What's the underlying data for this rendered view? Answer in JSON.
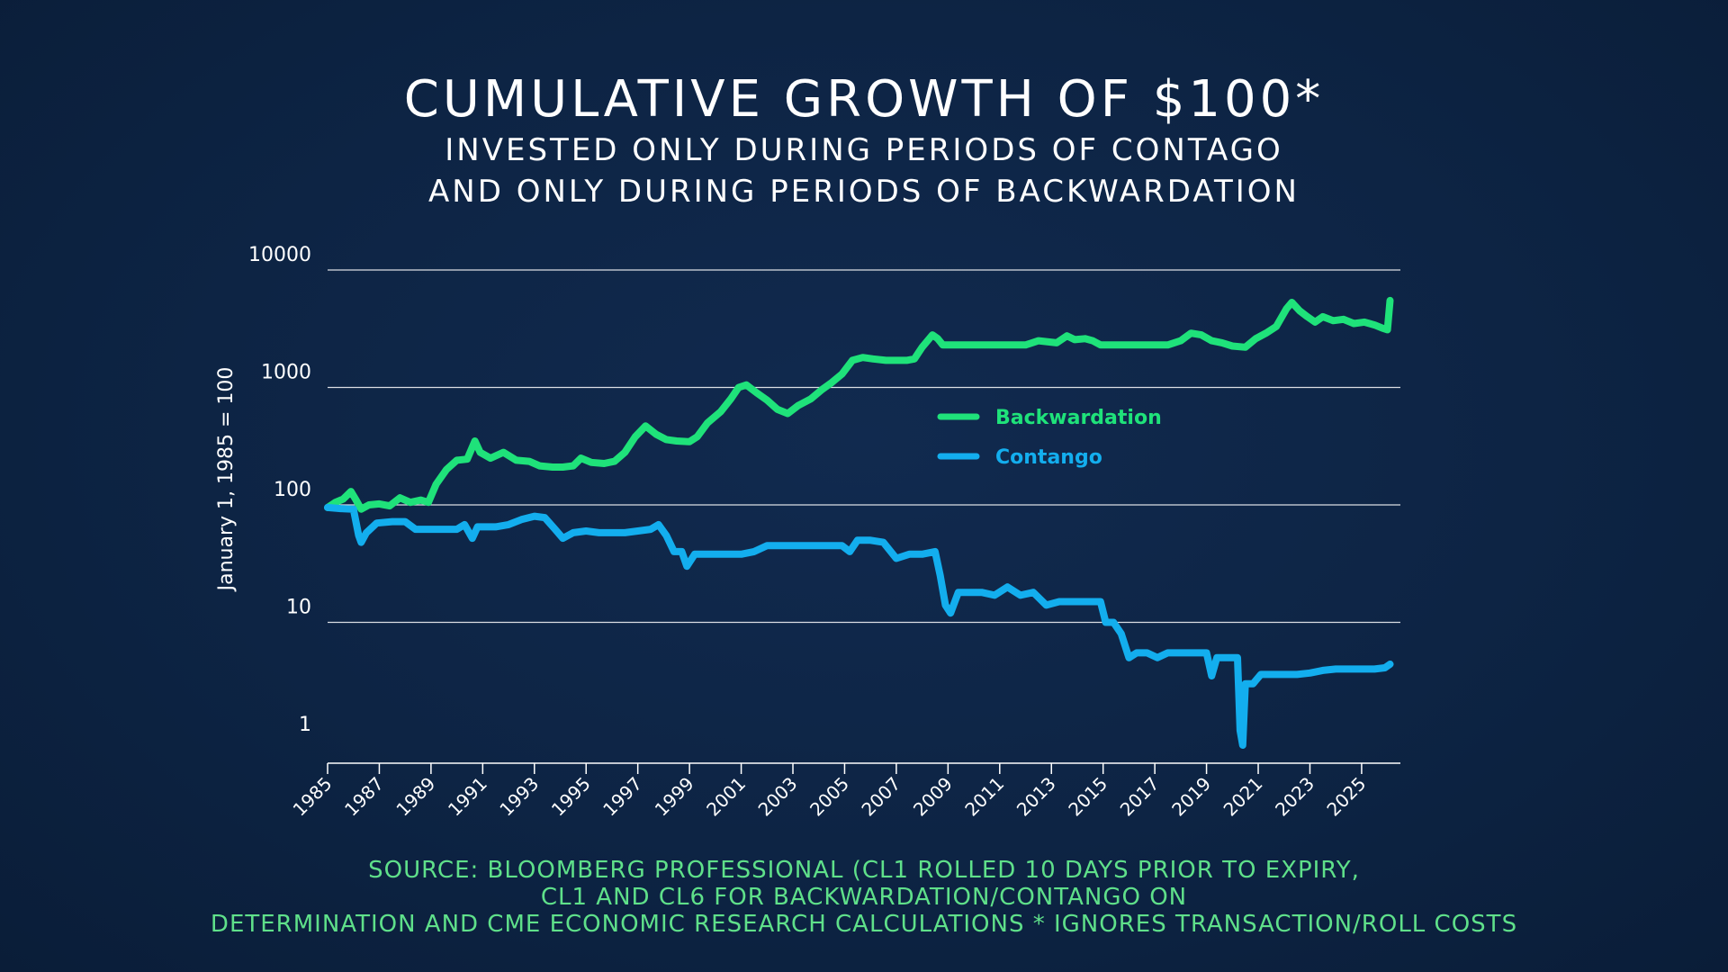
{
  "title": "CUMULATIVE GROWTH OF $100*",
  "subtitle_lines": [
    "INVESTED ONLY DURING PERIODS OF CONTAGO",
    "AND ONLY DURING PERIODS OF BACKWARDATION"
  ],
  "source_lines": [
    "SOURCE: BLOOMBERG PROFESSIONAL (CL1 ROLLED 10 DAYS PRIOR TO EXPIRY,",
    "CL1 AND CL6 FOR BACKWARDATION/CONTANGO ON",
    "DETERMINATION AND CME ECONOMIC RESEARCH CALCULATIONS * IGNORES TRANSACTION/ROLL COSTS"
  ],
  "colors": {
    "backwardation": "#1fe27a",
    "contango": "#13aeee",
    "gridline": "#ffffff",
    "source_text": "#5fe08a"
  },
  "chart_data": {
    "type": "line",
    "ylabel": "January 1, 1985 = 100",
    "xlabel": "",
    "yscale": "log",
    "ylim": [
      1,
      10000
    ],
    "xlim": [
      1985,
      2026.5
    ],
    "y_ticks": [
      1,
      10,
      100,
      1000,
      10000
    ],
    "y_tick_labels": [
      "1",
      "10",
      "100",
      "1000",
      "10000"
    ],
    "x_ticks": [
      1985,
      1987,
      1989,
      1991,
      1993,
      1995,
      1997,
      1999,
      2001,
      2003,
      2005,
      2007,
      2009,
      2011,
      2013,
      2015,
      2017,
      2019,
      2021,
      2023,
      2025
    ],
    "grid": "horizontal",
    "legend_position": "center-right",
    "series": [
      {
        "name": "Backwardation",
        "color": "#1fe27a",
        "points": [
          [
            1985.0,
            95
          ],
          [
            1985.3,
            105
          ],
          [
            1985.6,
            112
          ],
          [
            1985.9,
            130
          ],
          [
            1986.1,
            110
          ],
          [
            1986.3,
            92
          ],
          [
            1986.6,
            100
          ],
          [
            1987.0,
            102
          ],
          [
            1987.4,
            98
          ],
          [
            1987.8,
            115
          ],
          [
            1988.2,
            105
          ],
          [
            1988.6,
            110
          ],
          [
            1988.9,
            105
          ],
          [
            1989.2,
            150
          ],
          [
            1989.6,
            200
          ],
          [
            1990.0,
            240
          ],
          [
            1990.4,
            245
          ],
          [
            1990.7,
            350
          ],
          [
            1990.9,
            280
          ],
          [
            1991.3,
            250
          ],
          [
            1991.8,
            280
          ],
          [
            1992.3,
            240
          ],
          [
            1992.8,
            235
          ],
          [
            1993.2,
            215
          ],
          [
            1993.7,
            210
          ],
          [
            1994.1,
            210
          ],
          [
            1994.5,
            215
          ],
          [
            1994.8,
            250
          ],
          [
            1995.2,
            230
          ],
          [
            1995.7,
            225
          ],
          [
            1996.1,
            235
          ],
          [
            1996.5,
            280
          ],
          [
            1996.9,
            380
          ],
          [
            1997.3,
            470
          ],
          [
            1997.7,
            400
          ],
          [
            1998.1,
            360
          ],
          [
            1998.5,
            350
          ],
          [
            1999.0,
            345
          ],
          [
            1999.3,
            380
          ],
          [
            1999.7,
            500
          ],
          [
            2000.2,
            620
          ],
          [
            2000.6,
            800
          ],
          [
            2000.9,
            1000
          ],
          [
            2001.2,
            1050
          ],
          [
            2001.6,
            900
          ],
          [
            2002.0,
            780
          ],
          [
            2002.4,
            650
          ],
          [
            2002.8,
            600
          ],
          [
            2003.2,
            700
          ],
          [
            2003.7,
            800
          ],
          [
            2004.1,
            950
          ],
          [
            2004.5,
            1100
          ],
          [
            2004.9,
            1300
          ],
          [
            2005.3,
            1700
          ],
          [
            2005.7,
            1800
          ],
          [
            2006.1,
            1750
          ],
          [
            2006.6,
            1700
          ],
          [
            2007.0,
            1700
          ],
          [
            2007.4,
            1700
          ],
          [
            2007.7,
            1750
          ],
          [
            2008.0,
            2200
          ],
          [
            2008.4,
            2800
          ],
          [
            2008.6,
            2600
          ],
          [
            2008.8,
            2300
          ],
          [
            2009.2,
            2300
          ],
          [
            2010.0,
            2300
          ],
          [
            2011.0,
            2300
          ],
          [
            2012.0,
            2300
          ],
          [
            2012.5,
            2500
          ],
          [
            2013.2,
            2400
          ],
          [
            2013.6,
            2750
          ],
          [
            2013.9,
            2550
          ],
          [
            2014.3,
            2600
          ],
          [
            2014.6,
            2500
          ],
          [
            2014.9,
            2300
          ],
          [
            2015.5,
            2300
          ],
          [
            2016.5,
            2300
          ],
          [
            2017.5,
            2300
          ],
          [
            2018.0,
            2500
          ],
          [
            2018.4,
            2900
          ],
          [
            2018.8,
            2800
          ],
          [
            2019.2,
            2500
          ],
          [
            2019.6,
            2400
          ],
          [
            2020.0,
            2250
          ],
          [
            2020.5,
            2200
          ],
          [
            2020.9,
            2600
          ],
          [
            2021.3,
            2900
          ],
          [
            2021.7,
            3300
          ],
          [
            2022.1,
            4700
          ],
          [
            2022.3,
            5300
          ],
          [
            2022.6,
            4500
          ],
          [
            2022.9,
            4000
          ],
          [
            2023.2,
            3600
          ],
          [
            2023.5,
            4000
          ],
          [
            2023.9,
            3700
          ],
          [
            2024.3,
            3800
          ],
          [
            2024.7,
            3500
          ],
          [
            2025.1,
            3600
          ],
          [
            2025.5,
            3400
          ],
          [
            2025.8,
            3200
          ],
          [
            2026.0,
            3100
          ],
          [
            2026.1,
            5500
          ]
        ]
      },
      {
        "name": "Contango",
        "color": "#13aeee",
        "points": [
          [
            1985.0,
            95
          ],
          [
            1985.5,
            93
          ],
          [
            1986.0,
            92
          ],
          [
            1986.2,
            55
          ],
          [
            1986.3,
            48
          ],
          [
            1986.5,
            58
          ],
          [
            1986.9,
            70
          ],
          [
            1987.5,
            72
          ],
          [
            1988.0,
            72
          ],
          [
            1988.4,
            62
          ],
          [
            1988.8,
            62
          ],
          [
            1989.5,
            62
          ],
          [
            1990.0,
            62
          ],
          [
            1990.3,
            68
          ],
          [
            1990.6,
            52
          ],
          [
            1990.8,
            65
          ],
          [
            1991.5,
            65
          ],
          [
            1992.0,
            68
          ],
          [
            1992.5,
            75
          ],
          [
            1993.0,
            80
          ],
          [
            1993.4,
            78
          ],
          [
            1993.8,
            62
          ],
          [
            1994.1,
            52
          ],
          [
            1994.5,
            58
          ],
          [
            1995.0,
            60
          ],
          [
            1995.5,
            58
          ],
          [
            1996.0,
            58
          ],
          [
            1996.5,
            58
          ],
          [
            1997.0,
            60
          ],
          [
            1997.5,
            62
          ],
          [
            1997.8,
            68
          ],
          [
            1998.1,
            55
          ],
          [
            1998.4,
            40
          ],
          [
            1998.7,
            40
          ],
          [
            1998.9,
            30
          ],
          [
            1999.2,
            38
          ],
          [
            1999.8,
            38
          ],
          [
            2000.5,
            38
          ],
          [
            2001.0,
            38
          ],
          [
            2001.5,
            40
          ],
          [
            2002.0,
            45
          ],
          [
            2002.5,
            45
          ],
          [
            2003.0,
            45
          ],
          [
            2004.0,
            45
          ],
          [
            2004.9,
            45
          ],
          [
            2005.2,
            40
          ],
          [
            2005.5,
            50
          ],
          [
            2006.0,
            50
          ],
          [
            2006.5,
            48
          ],
          [
            2007.0,
            35
          ],
          [
            2007.5,
            38
          ],
          [
            2008.0,
            38
          ],
          [
            2008.5,
            40
          ],
          [
            2008.7,
            25
          ],
          [
            2008.9,
            14
          ],
          [
            2009.1,
            12
          ],
          [
            2009.4,
            18
          ],
          [
            2009.8,
            18
          ],
          [
            2010.3,
            18
          ],
          [
            2010.8,
            17
          ],
          [
            2011.3,
            20
          ],
          [
            2011.8,
            17
          ],
          [
            2012.3,
            18
          ],
          [
            2012.8,
            14
          ],
          [
            2013.3,
            15
          ],
          [
            2013.8,
            15
          ],
          [
            2014.3,
            15
          ],
          [
            2014.9,
            15
          ],
          [
            2015.1,
            10
          ],
          [
            2015.4,
            10
          ],
          [
            2015.7,
            8
          ],
          [
            2016.0,
            5
          ],
          [
            2016.3,
            5.5
          ],
          [
            2016.7,
            5.5
          ],
          [
            2017.1,
            5
          ],
          [
            2017.5,
            5.5
          ],
          [
            2018.0,
            5.5
          ],
          [
            2018.5,
            5.5
          ],
          [
            2019.0,
            5.5
          ],
          [
            2019.2,
            3.5
          ],
          [
            2019.4,
            5
          ],
          [
            2019.8,
            5
          ],
          [
            2020.2,
            5
          ],
          [
            2020.3,
            1.2
          ],
          [
            2020.4,
            0.9
          ],
          [
            2020.5,
            3
          ],
          [
            2020.8,
            3
          ],
          [
            2021.1,
            3.6
          ],
          [
            2021.8,
            3.6
          ],
          [
            2022.5,
            3.6
          ],
          [
            2023.0,
            3.7
          ],
          [
            2023.5,
            3.9
          ],
          [
            2024.0,
            4.0
          ],
          [
            2024.5,
            4.0
          ],
          [
            2025.0,
            4.0
          ],
          [
            2025.5,
            4.0
          ],
          [
            2025.9,
            4.1
          ],
          [
            2026.1,
            4.4
          ]
        ]
      }
    ]
  }
}
